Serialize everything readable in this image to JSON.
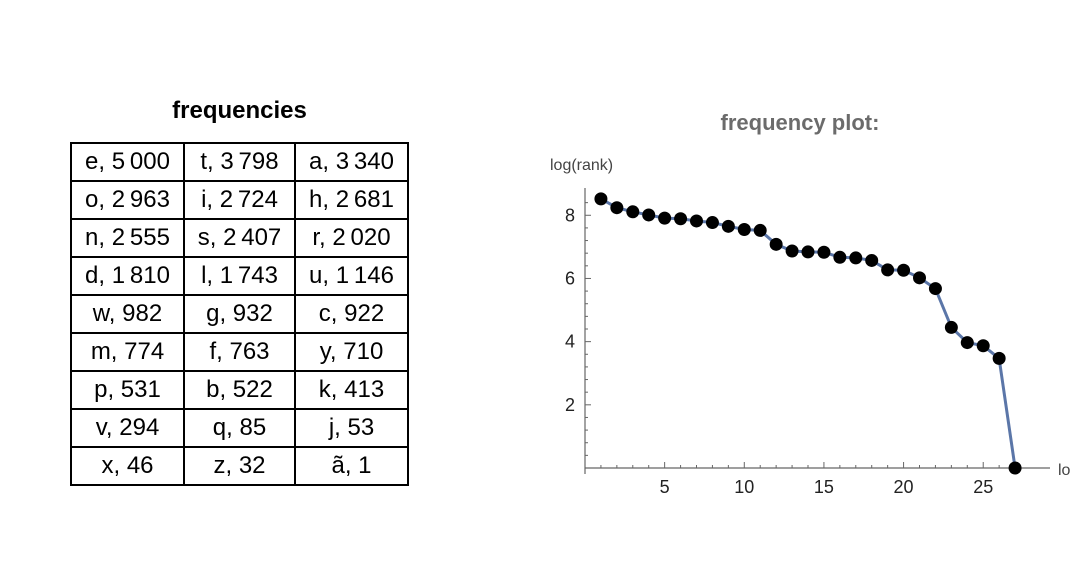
{
  "table": {
    "title": "frequencies",
    "rows": [
      [
        "e, 5 000",
        "t, 3 798",
        "a, 3 340"
      ],
      [
        "o, 2 963",
        "i, 2 724",
        "h, 2 681"
      ],
      [
        "n, 2 555",
        "s, 2 407",
        "r, 2 020"
      ],
      [
        "d, 1 810",
        "l, 1 743",
        "u, 1 146"
      ],
      [
        "w, 982",
        "g, 932",
        "c, 922"
      ],
      [
        "m, 774",
        "f, 763",
        "y, 710"
      ],
      [
        "p, 531",
        "b, 522",
        "k, 413"
      ],
      [
        "v, 294",
        "q, 85",
        "j, 53"
      ],
      [
        "x, 46",
        "z, 32",
        "ã, 1"
      ]
    ]
  },
  "chart_data": {
    "type": "line",
    "title": "frequency plot:",
    "xlabel": "lo",
    "ylabel": "log(rank)",
    "xlim": [
      0,
      28
    ],
    "ylim": [
      0,
      8.8
    ],
    "xticks": [
      5,
      10,
      15,
      20,
      25
    ],
    "yticks": [
      2,
      4,
      6,
      8
    ],
    "grid": false,
    "colors": {
      "line": "#5b76a8",
      "points": "#000000"
    },
    "x": [
      1,
      2,
      3,
      4,
      5,
      6,
      7,
      8,
      9,
      10,
      11,
      12,
      13,
      14,
      15,
      16,
      17,
      18,
      19,
      20,
      21,
      22,
      23,
      24,
      25,
      26,
      27
    ],
    "y": [
      8.52,
      8.24,
      8.11,
      8.01,
      7.91,
      7.89,
      7.82,
      7.77,
      7.65,
      7.55,
      7.52,
      7.08,
      6.87,
      6.84,
      6.83,
      6.67,
      6.65,
      6.57,
      6.27,
      6.26,
      6.02,
      5.68,
      4.45,
      3.97,
      3.87,
      3.47,
      0.0
    ]
  }
}
